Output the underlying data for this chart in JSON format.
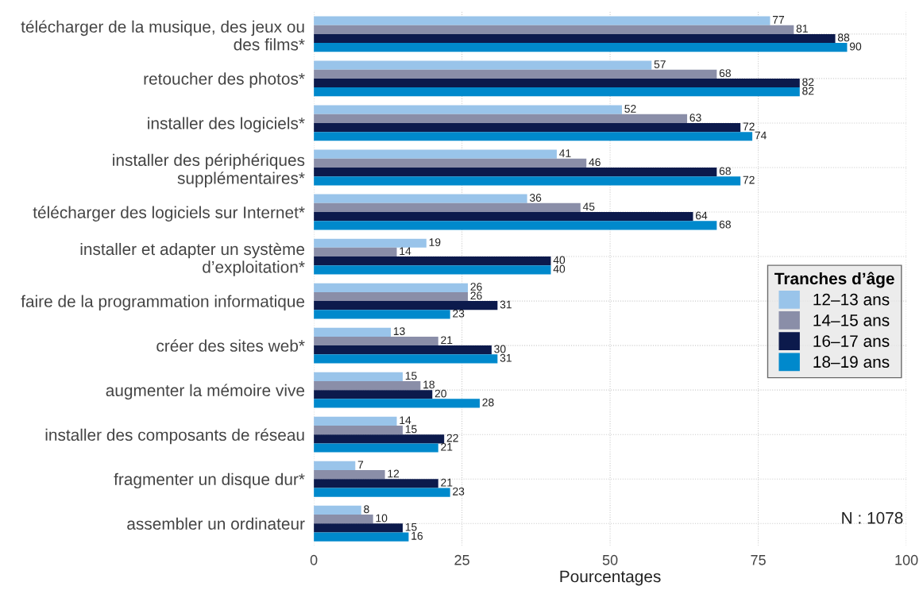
{
  "chart_data": {
    "type": "bar",
    "orientation": "horizontal",
    "xlabel": "Pourcentages",
    "legend_title": "Tranches d’âge",
    "legend": "right",
    "grid": true,
    "data_labels": true,
    "xlim": [
      0,
      100
    ],
    "xticks": [
      0,
      25,
      50,
      75,
      100
    ],
    "categories": [
      "télécharger de la musique, des jeux ou des films*",
      "retoucher des photos*",
      "installer des logiciels*",
      "installer des périphériques supplémentaires*",
      "télécharger des logiciels sur Internet*",
      "installer et adapter un système d’exploitation*",
      "faire de la programmation informatique",
      "créer des sites web*",
      "augmenter la mémoire vive",
      "installer des composants de réseau",
      "fragmenter un disque dur*",
      "assembler un ordinateur"
    ],
    "series": [
      {
        "name": "12–13 ans",
        "color": "#99c4ea",
        "values": [
          77,
          57,
          52,
          41,
          36,
          19,
          26,
          13,
          15,
          14,
          7,
          8
        ]
      },
      {
        "name": "14–15 ans",
        "color": "#8a8ea8",
        "values": [
          81,
          68,
          63,
          46,
          45,
          14,
          26,
          21,
          18,
          15,
          12,
          10
        ]
      },
      {
        "name": "16–17 ans",
        "color": "#0c1a4c",
        "values": [
          88,
          82,
          72,
          68,
          64,
          40,
          31,
          30,
          20,
          22,
          21,
          15
        ]
      },
      {
        "name": "18–19 ans",
        "color": "#0089cc",
        "values": [
          90,
          82,
          74,
          72,
          68,
          40,
          23,
          31,
          28,
          21,
          23,
          16
        ]
      }
    ],
    "annotations": [
      "N : 1078"
    ]
  }
}
